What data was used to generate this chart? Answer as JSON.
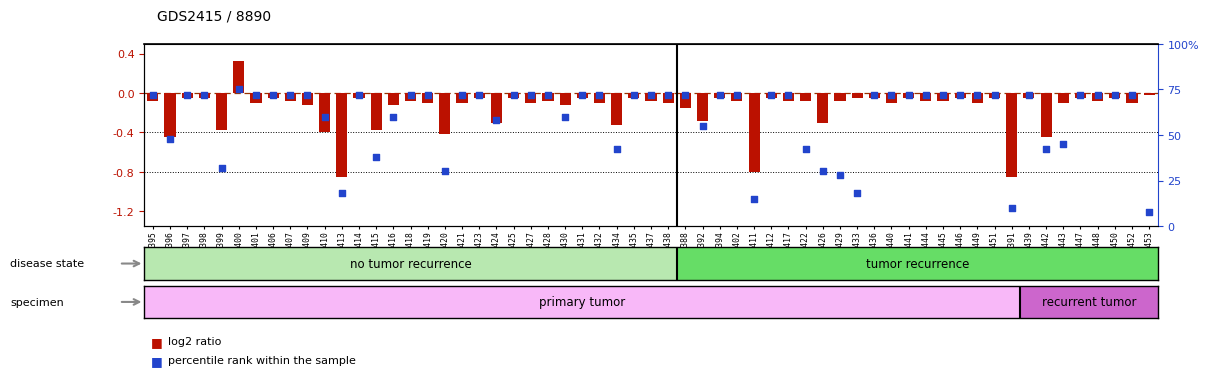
{
  "title": "GDS2415 / 8890",
  "samples": [
    "GSM110395",
    "GSM110396",
    "GSM110397",
    "GSM110398",
    "GSM110399",
    "GSM110400",
    "GSM110401",
    "GSM110406",
    "GSM110407",
    "GSM110409",
    "GSM110410",
    "GSM110413",
    "GSM110414",
    "GSM110415",
    "GSM110416",
    "GSM110418",
    "GSM110419",
    "GSM110420",
    "GSM110421",
    "GSM110423",
    "GSM110424",
    "GSM110425",
    "GSM110427",
    "GSM110428",
    "GSM110430",
    "GSM110431",
    "GSM110432",
    "GSM110434",
    "GSM110435",
    "GSM110437",
    "GSM110438",
    "GSM110388",
    "GSM110392",
    "GSM110394",
    "GSM110402",
    "GSM110411",
    "GSM110412",
    "GSM110417",
    "GSM110422",
    "GSM110426",
    "GSM110429",
    "GSM110433",
    "GSM110436",
    "GSM110440",
    "GSM110441",
    "GSM110444",
    "GSM110445",
    "GSM110446",
    "GSM110449",
    "GSM110451",
    "GSM110391",
    "GSM110439",
    "GSM110442",
    "GSM110443",
    "GSM110447",
    "GSM110448",
    "GSM110450",
    "GSM110452",
    "GSM110453"
  ],
  "log2_ratio": [
    -0.08,
    -0.45,
    -0.05,
    -0.05,
    -0.38,
    0.32,
    -0.1,
    -0.05,
    -0.08,
    -0.12,
    -0.4,
    -0.85,
    -0.05,
    -0.38,
    -0.12,
    -0.08,
    -0.1,
    -0.42,
    -0.1,
    -0.05,
    -0.3,
    -0.05,
    -0.1,
    -0.08,
    -0.12,
    -0.05,
    -0.1,
    -0.32,
    -0.05,
    -0.08,
    -0.1,
    -0.15,
    -0.28,
    -0.05,
    -0.08,
    -0.8,
    -0.05,
    -0.08,
    -0.08,
    -0.3,
    -0.08,
    -0.05,
    -0.05,
    -0.1,
    -0.05,
    -0.08,
    -0.08,
    -0.05,
    -0.1,
    -0.05,
    -0.85,
    -0.05,
    -0.45,
    -0.1,
    -0.05,
    -0.08,
    -0.05,
    -0.1,
    -0.02
  ],
  "percentile": [
    72,
    48,
    72,
    72,
    32,
    75,
    72,
    72,
    72,
    72,
    60,
    18,
    72,
    38,
    60,
    72,
    72,
    30,
    72,
    72,
    58,
    72,
    72,
    72,
    60,
    72,
    72,
    42,
    72,
    72,
    72,
    72,
    55,
    72,
    72,
    15,
    72,
    72,
    42,
    30,
    28,
    18,
    72,
    72,
    72,
    72,
    72,
    72,
    72,
    72,
    10,
    72,
    42,
    45,
    72,
    72,
    72,
    72,
    8
  ],
  "no_recurrence_count": 31,
  "recurrence_count": 28,
  "primary_count": 51,
  "recurrent_count": 8,
  "ylim_left": [
    -1.35,
    0.5
  ],
  "ylim_right": [
    0,
    100
  ],
  "yticks_left": [
    0.4,
    0.0,
    -0.4,
    -0.8,
    -1.2
  ],
  "yticks_right": [
    100,
    75,
    50,
    25,
    0
  ],
  "bar_color": "#bb1100",
  "dot_color": "#2244cc",
  "bg_color": "#ffffff",
  "disease_state_no_recurrence_color": "#b8e8b0",
  "disease_state_recurrence_color": "#66dd66",
  "specimen_primary_color": "#f8b8f8",
  "specimen_recurrent_color": "#cc66cc",
  "no_recurrence_label": "no tumor recurrence",
  "recurrence_label": "tumor recurrence",
  "primary_label": "primary tumor",
  "recurrent_label": "recurrent tumor",
  "disease_state_label": "disease state",
  "specimen_label": "specimen"
}
